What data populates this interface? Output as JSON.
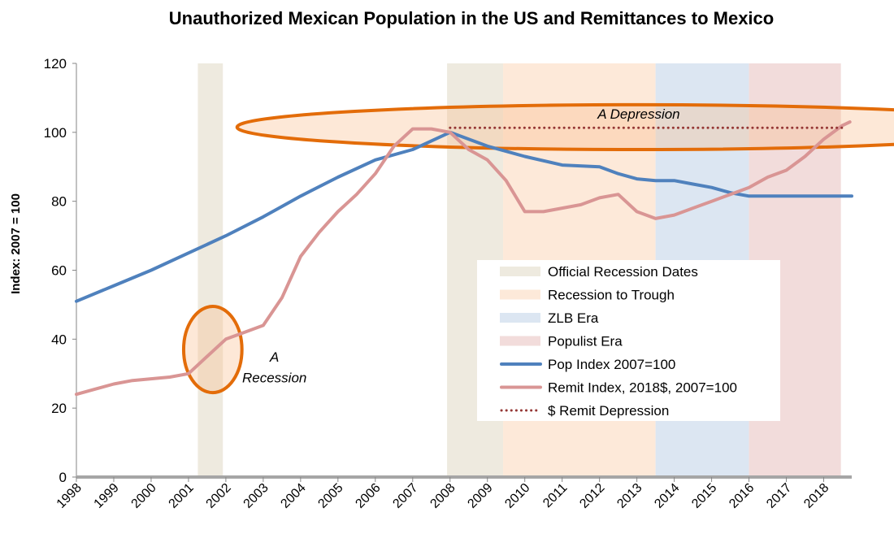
{
  "chart_data": {
    "type": "line",
    "title": "Unauthorized Mexican Population in the US and Remittances to Mexico",
    "ylabel": "Index: 2007 = 100",
    "xlabel": "",
    "ylim": [
      0,
      120
    ],
    "xlim": [
      1998,
      2018.75
    ],
    "y_ticks": [
      "0",
      "20",
      "40",
      "60",
      "80",
      "100",
      "120"
    ],
    "x_ticks": [
      "1998",
      "1999",
      "2000",
      "2001",
      "2002",
      "2003",
      "2004",
      "2005",
      "2006",
      "2007",
      "2008",
      "2009",
      "2010",
      "2011",
      "2012",
      "2013",
      "2014",
      "2015",
      "2016",
      "2017",
      "2018"
    ],
    "grid": false,
    "legend_position": "center-right",
    "shaded_periods": [
      {
        "legend": "Official Recession Dates",
        "start": 2001.25,
        "end": 2001.92,
        "color": "#eeeadf"
      },
      {
        "legend": "Official Recession Dates",
        "start": 2007.92,
        "end": 2009.42,
        "color": "#eeeadf"
      },
      {
        "legend": "Recession to Trough",
        "start": 2009.42,
        "end": 2013.5,
        "color": "#fde9d9"
      },
      {
        "legend": "ZLB Era",
        "start": 2013.5,
        "end": 2016.0,
        "color": "#dce6f2"
      },
      {
        "legend": "Populist Era",
        "start": 2016.0,
        "end": 2018.46,
        "color": "#f2dcdb"
      }
    ],
    "series": [
      {
        "name": "Pop Index 2007=100",
        "color": "#4f81bd",
        "points": [
          [
            1998.0,
            51
          ],
          [
            1999.0,
            55.5
          ],
          [
            2000.0,
            60
          ],
          [
            2001.0,
            65
          ],
          [
            2002.0,
            70
          ],
          [
            2003.0,
            75.5
          ],
          [
            2004.0,
            81.5
          ],
          [
            2005.0,
            87
          ],
          [
            2006.0,
            92
          ],
          [
            2007.0,
            95
          ],
          [
            2008.0,
            100
          ],
          [
            2009.0,
            96
          ],
          [
            2010.0,
            93
          ],
          [
            2011.0,
            90.5
          ],
          [
            2012.0,
            90
          ],
          [
            2012.5,
            88
          ],
          [
            2013.0,
            86.5
          ],
          [
            2013.5,
            86
          ],
          [
            2014.0,
            86
          ],
          [
            2014.5,
            85
          ],
          [
            2015.0,
            84
          ],
          [
            2015.5,
            82.5
          ],
          [
            2016.0,
            81.5
          ],
          [
            2017.0,
            81.5
          ],
          [
            2018.0,
            81.5
          ],
          [
            2018.75,
            81.5
          ]
        ]
      },
      {
        "name": "Remit Index, 2018$, 2007=100",
        "color": "#d99594",
        "points": [
          [
            1998.0,
            24
          ],
          [
            1998.5,
            25.5
          ],
          [
            1999.0,
            27
          ],
          [
            1999.5,
            28
          ],
          [
            2000.0,
            28.5
          ],
          [
            2000.5,
            29
          ],
          [
            2001.0,
            30
          ],
          [
            2001.5,
            35
          ],
          [
            2002.0,
            40
          ],
          [
            2002.5,
            42
          ],
          [
            2003.0,
            44
          ],
          [
            2003.5,
            52
          ],
          [
            2004.0,
            64
          ],
          [
            2004.5,
            71
          ],
          [
            2005.0,
            77
          ],
          [
            2005.5,
            82
          ],
          [
            2006.0,
            88
          ],
          [
            2006.5,
            96
          ],
          [
            2007.0,
            101
          ],
          [
            2007.5,
            101
          ],
          [
            2008.0,
            100
          ],
          [
            2008.5,
            95
          ],
          [
            2009.0,
            92
          ],
          [
            2009.5,
            86
          ],
          [
            2010.0,
            77
          ],
          [
            2010.5,
            77
          ],
          [
            2011.0,
            78
          ],
          [
            2011.5,
            79
          ],
          [
            2012.0,
            81
          ],
          [
            2012.5,
            82
          ],
          [
            2013.0,
            77
          ],
          [
            2013.5,
            75
          ],
          [
            2014.0,
            76
          ],
          [
            2014.5,
            78
          ],
          [
            2015.0,
            80
          ],
          [
            2015.5,
            82
          ],
          [
            2016.0,
            84
          ],
          [
            2016.5,
            87
          ],
          [
            2017.0,
            89
          ],
          [
            2017.5,
            93
          ],
          [
            2018.0,
            98
          ],
          [
            2018.5,
            102
          ],
          [
            2018.7,
            103
          ]
        ]
      },
      {
        "name": "$ Remit Depression",
        "color": "#953735",
        "dotted": true,
        "points": [
          [
            2008.0,
            101.3
          ],
          [
            2018.6,
            101.3
          ]
        ]
      }
    ],
    "annotations": [
      {
        "text": "A Depression",
        "x": 2013.05,
        "y": 104
      },
      {
        "text": "A",
        "x": 2003.3,
        "y": 33.5
      },
      {
        "text": "Recession",
        "x": 2003.3,
        "y": 27.5
      }
    ],
    "ellipses": [
      {
        "cx": 2001.65,
        "cy": 37,
        "rx": 0.78,
        "ry": 12.5,
        "color": "#e36c09",
        "fill": "rgba(250,190,140,0.35)"
      },
      {
        "cx": 2013.05,
        "cy": 101.5,
        "rx": 10.75,
        "ry": 6.5,
        "color": "#e36c09",
        "fill": "rgba(250,190,140,0.35)"
      }
    ]
  }
}
